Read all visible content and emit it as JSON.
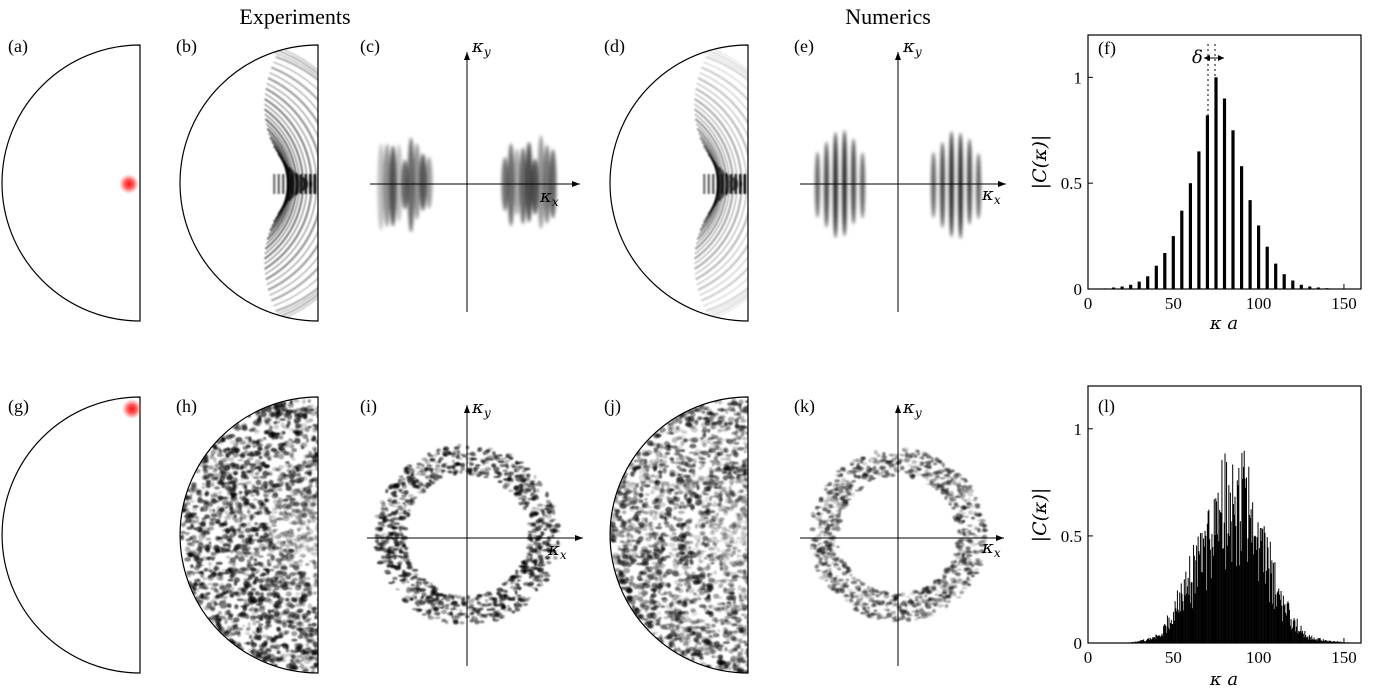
{
  "headers": {
    "left": "Experiments",
    "right": "Numerics"
  },
  "panel_labels": [
    "(a)",
    "(b)",
    "(c)",
    "(d)",
    "(e)",
    "(f)",
    "(g)",
    "(h)",
    "(i)",
    "(j)",
    "(k)",
    "(l)"
  ],
  "axis_symbols": {
    "kx_base": "κ",
    "kx_sub": "x",
    "ky_base": "κ",
    "ky_sub": "y"
  },
  "colors": {
    "source_spot": "#ff2020",
    "ink": "#000000",
    "field": "#000000"
  },
  "chart_data": [
    {
      "panel": "(f)",
      "type": "bar",
      "xlabel": "κ a",
      "ylabel": "|C(κ)|",
      "xlim": [
        0,
        160
      ],
      "ylim": [
        0,
        1.2
      ],
      "xticks": [
        0,
        50,
        100,
        150
      ],
      "yticks": [
        0,
        0.5,
        1
      ],
      "ytick_labels": [
        "0",
        "0.5",
        "1"
      ],
      "annotation": "δ",
      "x": [
        0,
        5,
        10,
        15,
        20,
        25,
        30,
        35,
        40,
        45,
        50,
        55,
        60,
        65,
        70,
        75,
        80,
        85,
        90,
        95,
        100,
        105,
        110,
        115,
        120,
        125,
        130,
        135,
        140,
        145,
        150,
        155
      ],
      "values": [
        0.0,
        0.0,
        0.003,
        0.007,
        0.012,
        0.02,
        0.035,
        0.06,
        0.11,
        0.17,
        0.25,
        0.37,
        0.5,
        0.65,
        0.82,
        1.0,
        0.9,
        0.75,
        0.58,
        0.42,
        0.3,
        0.2,
        0.12,
        0.07,
        0.04,
        0.02,
        0.012,
        0.007,
        0.004,
        0.002,
        0.0,
        0.0
      ]
    },
    {
      "panel": "(l)",
      "type": "bar",
      "xlabel": "κ a",
      "ylabel": "|C(κ)|",
      "xlim": [
        0,
        160
      ],
      "ylim": [
        0,
        1.2
      ],
      "xticks": [
        0,
        50,
        100,
        150
      ],
      "yticks": [
        0,
        0.5,
        1
      ],
      "ytick_labels": [
        "0",
        "0.5",
        "1"
      ],
      "envelope": {
        "x": [
          20,
          30,
          40,
          45,
          50,
          55,
          60,
          65,
          70,
          75,
          80,
          85,
          90,
          95,
          100,
          105,
          110,
          115,
          120,
          125,
          130,
          140,
          150,
          160
        ],
        "values": [
          0.0,
          0.01,
          0.04,
          0.1,
          0.2,
          0.3,
          0.42,
          0.55,
          0.7,
          0.85,
          0.97,
          1.0,
          0.95,
          0.85,
          0.7,
          0.55,
          0.38,
          0.25,
          0.15,
          0.08,
          0.04,
          0.015,
          0.005,
          0.0
        ]
      }
    }
  ]
}
